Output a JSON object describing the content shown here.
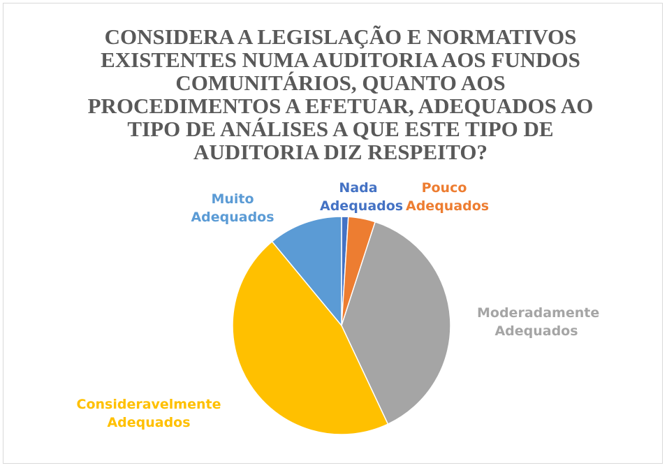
{
  "chart_data": {
    "type": "pie",
    "title": "CONSIDERA A LEGISLAÇÃO E NORMATIVOS EXISTENTES NUMA AUDITORIA AOS FUNDOS COMUNITÁRIOS, QUANTO AOS PROCEDIMENTOS A EFETUAR, ADEQUADOS AO TIPO DE ANÁLISES A QUE ESTE TIPO DE AUDITORIA DIZ RESPEITO?",
    "categories": [
      "Nada Adequados",
      "Pouco Adequados",
      "Moderadamente Adequados",
      "Consideravelmente Adequados",
      "Muito Adequados"
    ],
    "values": [
      1,
      4,
      38,
      46,
      11
    ],
    "colors": [
      "#4472c4",
      "#ed7d31",
      "#a5a5a5",
      "#ffc000",
      "#5b9bd5"
    ]
  }
}
